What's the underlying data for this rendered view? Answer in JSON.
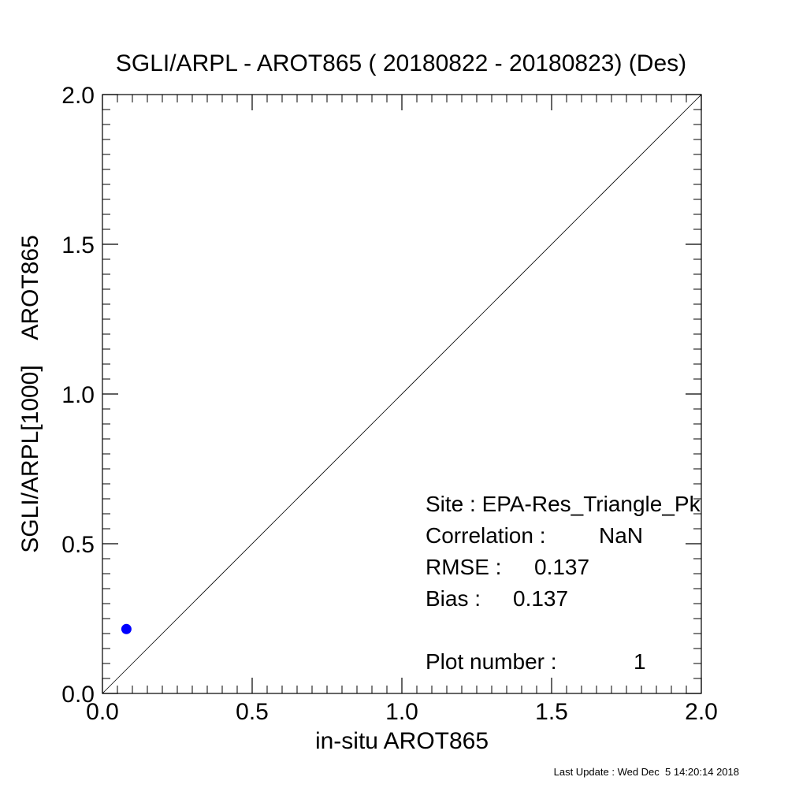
{
  "chart_data": {
    "type": "scatter",
    "title": "SGLI/ARPL - AROT865 ( 20180822 - 20180823) (Des)",
    "xlabel": "in-situ AROT865",
    "ylabel": "SGLI/ARPL[1000]    AROT865",
    "xlim": [
      0.0,
      2.0
    ],
    "ylim": [
      0.0,
      2.0
    ],
    "xticks": [
      0.0,
      0.5,
      1.0,
      1.5,
      2.0
    ],
    "yticks": [
      0.0,
      0.5,
      1.0,
      1.5,
      2.0
    ],
    "xtick_labels": [
      "0.0",
      "0.5",
      "1.0",
      "1.5",
      "2.0"
    ],
    "ytick_labels": [
      "0.0",
      "0.5",
      "1.0",
      "1.5",
      "2.0"
    ],
    "minor_tick_step": 0.05,
    "grid": false,
    "reference_line": {
      "type": "1:1",
      "from": [
        0,
        0
      ],
      "to": [
        2,
        2
      ]
    },
    "series": [
      {
        "color": "#0000ff",
        "points": [
          {
            "x": 0.08,
            "y": 0.215
          }
        ]
      }
    ],
    "stats": {
      "site_label": "Site : ",
      "site_value": "EPA-Res_Triangle_Pk",
      "correlation_label": "Correlation :",
      "correlation_value": "NaN",
      "rmse_label": "RMSE :",
      "rmse_value": "0.137",
      "bias_label": "Bias :",
      "bias_value": "0.137",
      "plot_number_label": "Plot number :",
      "plot_number_value": "1"
    },
    "footer": "Last Update : Wed Dec  5 14:20:14 2018"
  }
}
